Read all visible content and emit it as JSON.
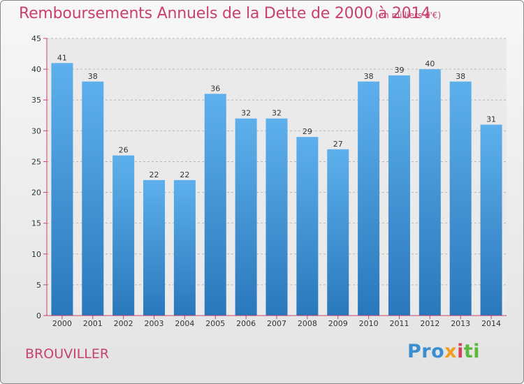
{
  "title": "Remboursements Annuels de la Dette de 2000 à 2014",
  "subtitle": "(en milliers d'€)",
  "commune": "BROUVILLER",
  "logo": {
    "p1": "Pro",
    "p2": "x",
    "p3": "i",
    "p4": "ti"
  },
  "colors": {
    "bar": "#3a8fd0",
    "title": "#c8416e",
    "axis": "#c8416e"
  },
  "chart_data": {
    "type": "bar",
    "title": "Remboursements Annuels de la Dette de 2000 à 2014",
    "xlabel": "",
    "ylabel": "",
    "categories": [
      "2000",
      "2001",
      "2002",
      "2003",
      "2004",
      "2005",
      "2006",
      "2007",
      "2008",
      "2009",
      "2010",
      "2011",
      "2012",
      "2013",
      "2014"
    ],
    "values": [
      41,
      38,
      26,
      22,
      22,
      36,
      32,
      32,
      29,
      27,
      38,
      39,
      40,
      38,
      31
    ],
    "ylim": [
      0,
      45
    ],
    "yticks": [
      0,
      5,
      10,
      15,
      20,
      25,
      30,
      35,
      40,
      45
    ],
    "grid": true,
    "legend": "none"
  }
}
